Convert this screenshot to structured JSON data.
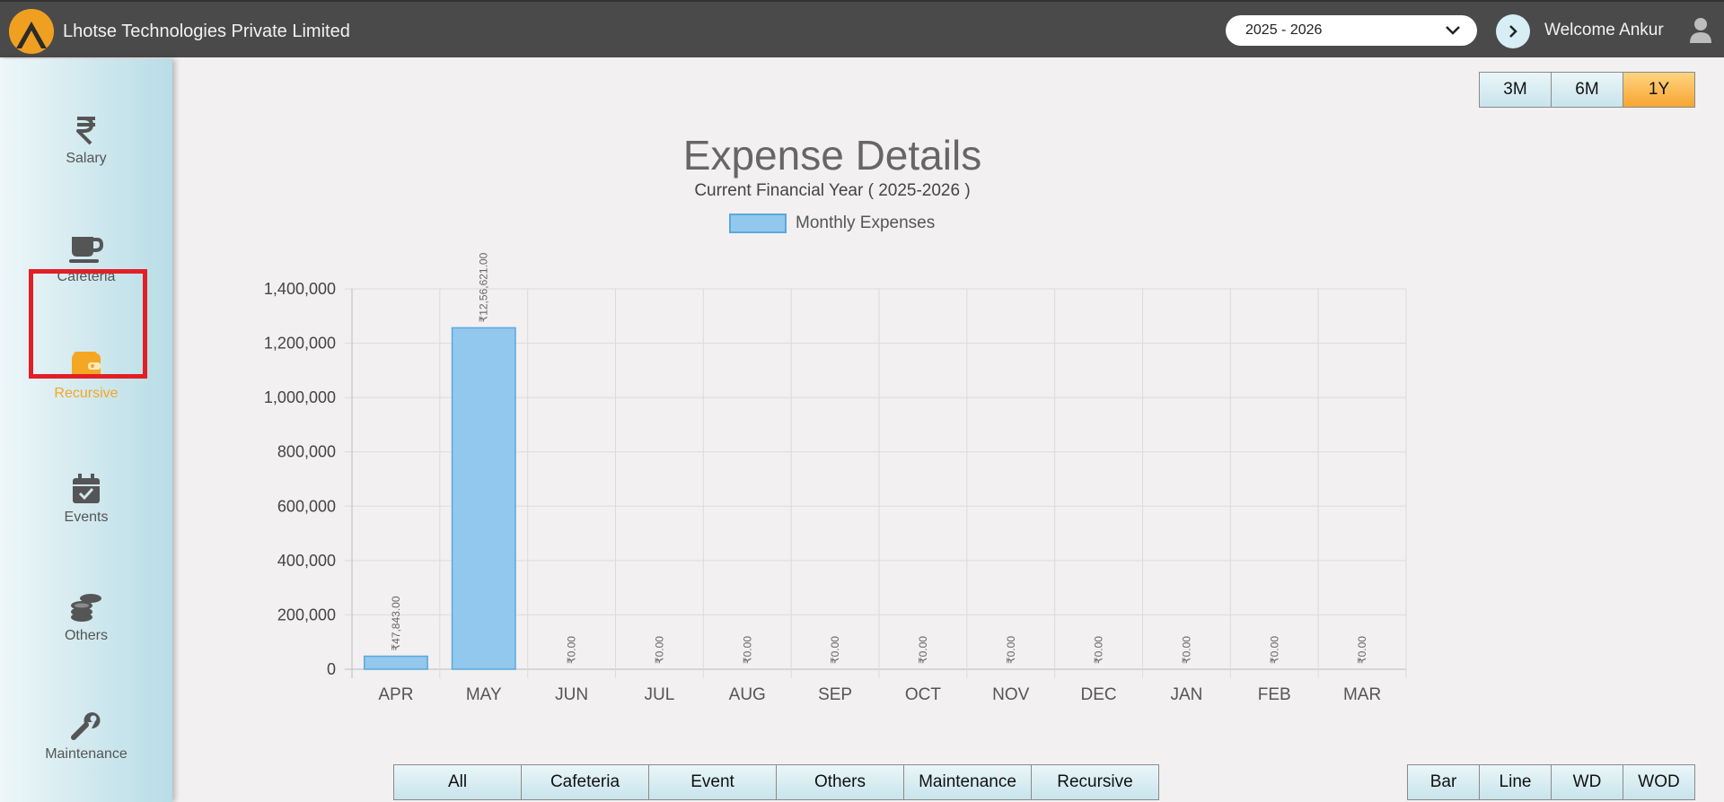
{
  "header": {
    "company_name": "Lhotse Technologies Private Limited",
    "year_selected": "2025 - 2026",
    "welcome_text": "Welcome Ankur"
  },
  "sidebar": {
    "items": [
      {
        "label": "Salary",
        "icon": "rupee-icon"
      },
      {
        "label": "Cafeteria",
        "icon": "cup-icon"
      },
      {
        "label": "Recursive",
        "icon": "wallet-icon",
        "active": true
      },
      {
        "label": "Events",
        "icon": "calendar-check-icon"
      },
      {
        "label": "Others",
        "icon": "coins-icon"
      },
      {
        "label": "Maintenance",
        "icon": "wrench-icon"
      }
    ]
  },
  "period_buttons": {
    "b3m": "3M",
    "b6m": "6M",
    "b1y": "1Y",
    "active": "1Y"
  },
  "filter_buttons": {
    "all": "All",
    "cafeteria": "Cafeteria",
    "event": "Event",
    "others": "Others",
    "maintenance": "Maintenance",
    "recursive": "Recursive"
  },
  "chart_type_buttons": {
    "bar": "Bar",
    "line": "Line",
    "wd": "WD",
    "wod": "WOD"
  },
  "colors": {
    "accent": "#f5a623",
    "bar_fill": "#92c8ed",
    "bar_stroke": "#5ba8dc",
    "header_bg": "#4a4a4a",
    "highlight": "#e21f26"
  },
  "chart_data": {
    "type": "bar",
    "title": "Expense Details",
    "subtitle": "Current Financial Year ( 2025-2026 )",
    "legend": "Monthly Expenses",
    "categories": [
      "APR",
      "MAY",
      "JUN",
      "JUL",
      "AUG",
      "SEP",
      "OCT",
      "NOV",
      "DEC",
      "JAN",
      "FEB",
      "MAR"
    ],
    "values": [
      47843,
      1256621,
      0,
      0,
      0,
      0,
      0,
      0,
      0,
      0,
      0,
      0
    ],
    "data_labels": [
      "₹47,843.00",
      "₹12,56,621.00",
      "₹0.00",
      "₹0.00",
      "₹0.00",
      "₹0.00",
      "₹0.00",
      "₹0.00",
      "₹0.00",
      "₹0.00",
      "₹0.00",
      "₹0.00"
    ],
    "y_ticks": [
      "0",
      "200,000",
      "400,000",
      "600,000",
      "800,000",
      "1,000,000",
      "1,200,000",
      "1,400,000"
    ],
    "ylim": [
      0,
      1400000
    ],
    "y_step": 200000,
    "grid": true
  }
}
